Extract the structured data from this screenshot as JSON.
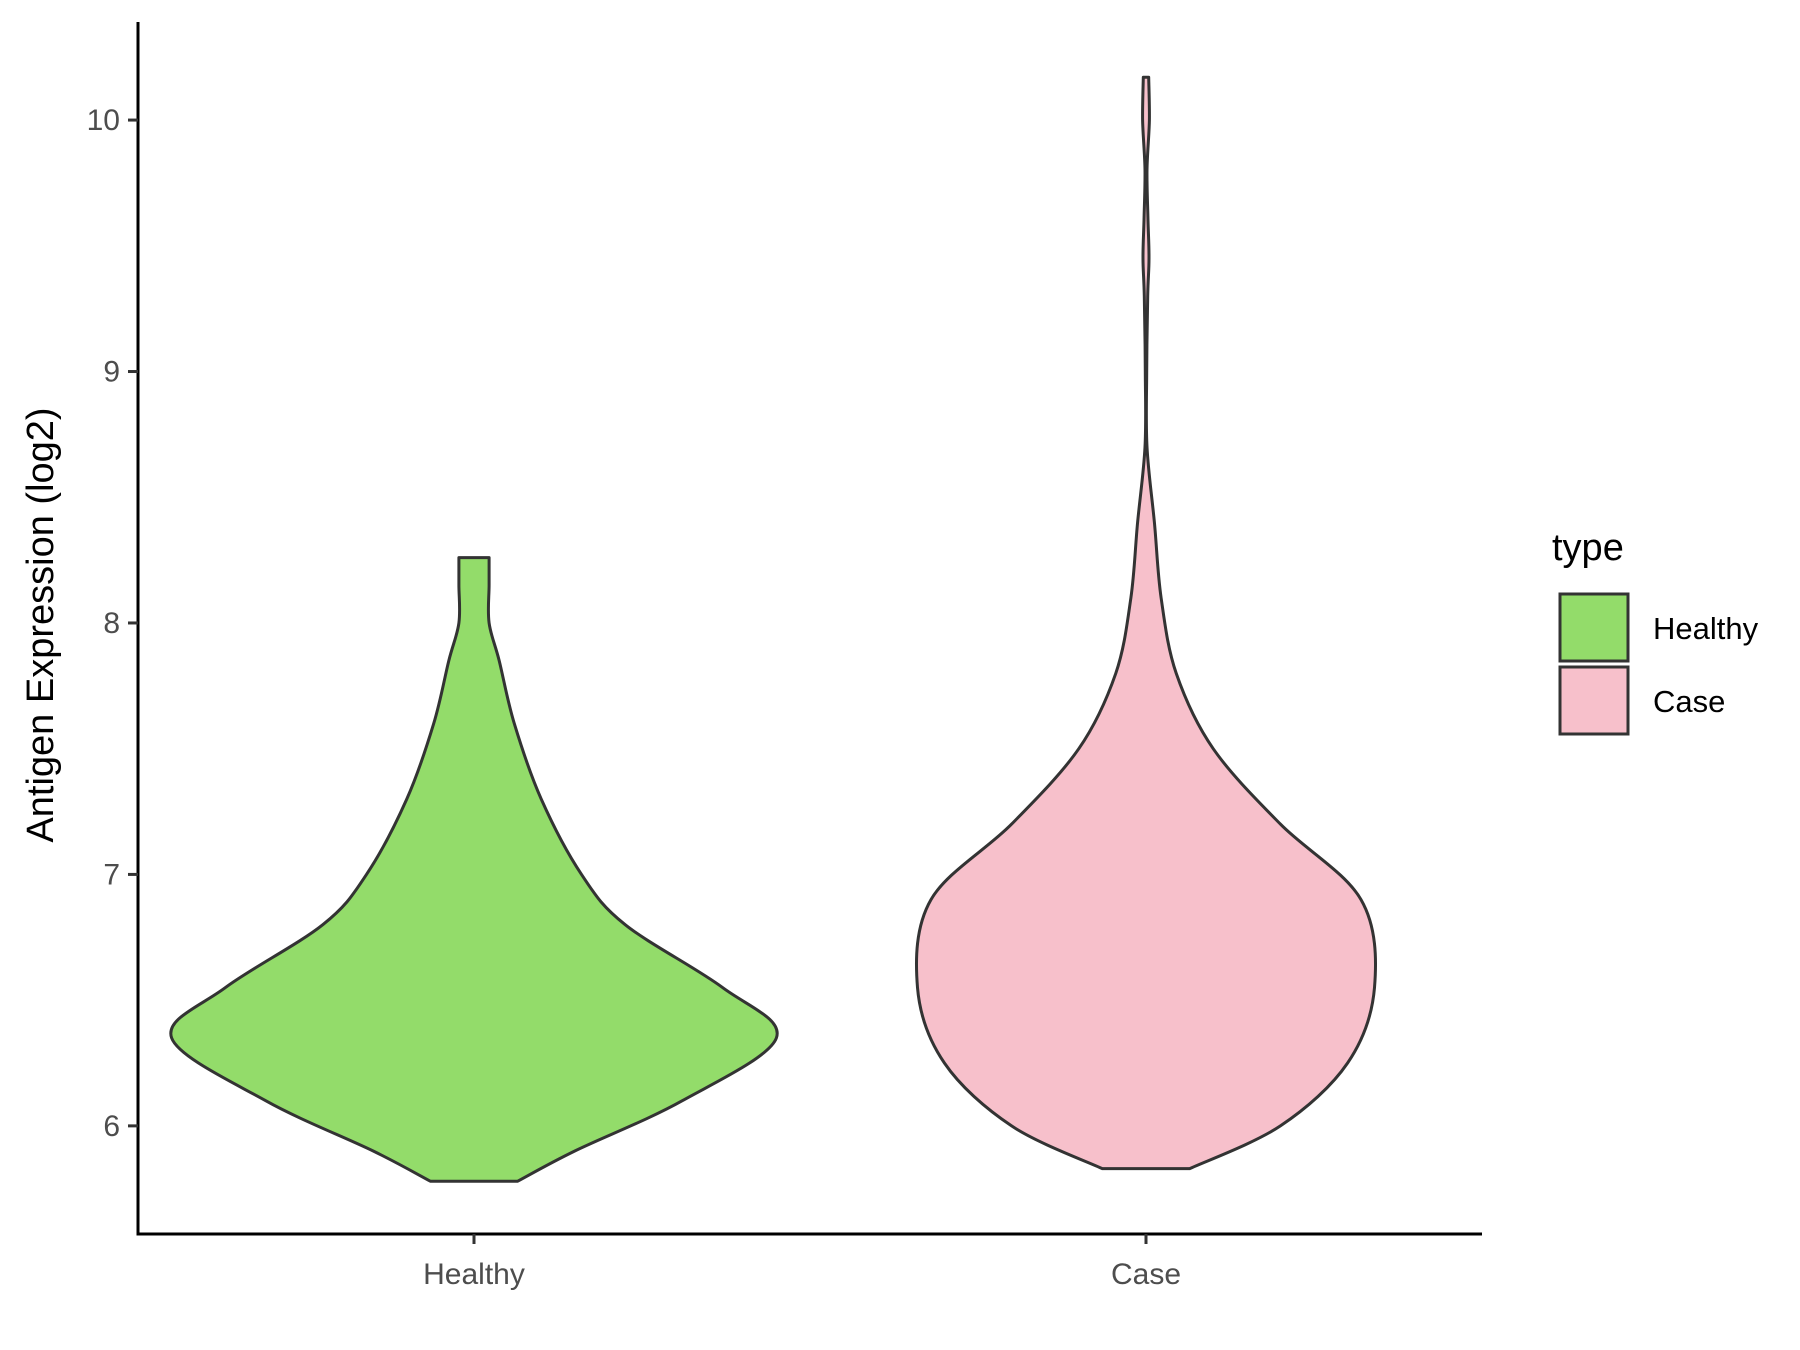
{
  "chart_data": {
    "type": "violin",
    "ylabel": "Antigen Expression (log2)",
    "xlabel": "",
    "categories": [
      "Healthy",
      "Case"
    ],
    "ylim": [
      5.57,
      10.39
    ],
    "yticks": [
      6,
      7,
      8,
      9,
      10
    ],
    "grid": false,
    "legend": {
      "title": "type",
      "position": "right",
      "entries": [
        {
          "label": "Healthy",
          "color": "#93DC6A"
        },
        {
          "label": "Case",
          "color": "#F7C0CB"
        }
      ]
    },
    "series": [
      {
        "category": "Healthy",
        "color": "#93DC6A",
        "min": 5.78,
        "max": 8.26,
        "density_profile": [
          {
            "y": 5.78,
            "half_width": 0.13
          },
          {
            "y": 5.9,
            "half_width": 0.3
          },
          {
            "y": 6.1,
            "half_width": 0.62
          },
          {
            "y": 6.35,
            "half_width": 0.9
          },
          {
            "y": 6.55,
            "half_width": 0.74
          },
          {
            "y": 6.8,
            "half_width": 0.45
          },
          {
            "y": 7.0,
            "half_width": 0.32
          },
          {
            "y": 7.3,
            "half_width": 0.2
          },
          {
            "y": 7.6,
            "half_width": 0.12
          },
          {
            "y": 7.85,
            "half_width": 0.075
          },
          {
            "y": 8.0,
            "half_width": 0.045
          },
          {
            "y": 8.15,
            "half_width": 0.045
          },
          {
            "y": 8.26,
            "half_width": 0.045
          }
        ]
      },
      {
        "category": "Case",
        "color": "#F7C0CB",
        "min": 5.83,
        "max": 10.17,
        "density_profile": [
          {
            "y": 5.83,
            "half_width": 0.13
          },
          {
            "y": 6.0,
            "half_width": 0.4
          },
          {
            "y": 6.25,
            "half_width": 0.6
          },
          {
            "y": 6.55,
            "half_width": 0.68
          },
          {
            "y": 6.9,
            "half_width": 0.64
          },
          {
            "y": 7.2,
            "half_width": 0.4
          },
          {
            "y": 7.5,
            "half_width": 0.2
          },
          {
            "y": 7.8,
            "half_width": 0.09
          },
          {
            "y": 8.1,
            "half_width": 0.045
          },
          {
            "y": 8.4,
            "half_width": 0.025
          },
          {
            "y": 8.7,
            "half_width": 0.003
          },
          {
            "y": 9.0,
            "half_width": 0.002
          },
          {
            "y": 9.3,
            "half_width": 0.005
          },
          {
            "y": 9.45,
            "half_width": 0.009
          },
          {
            "y": 9.6,
            "half_width": 0.006
          },
          {
            "y": 9.8,
            "half_width": 0.003
          },
          {
            "y": 10.0,
            "half_width": 0.01
          },
          {
            "y": 10.17,
            "half_width": 0.008
          }
        ]
      }
    ]
  }
}
